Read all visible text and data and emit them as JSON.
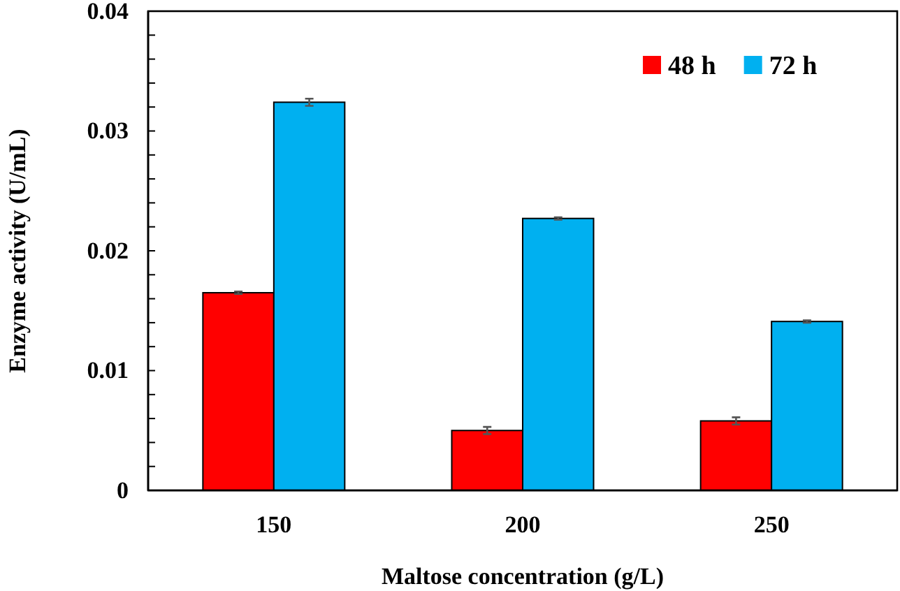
{
  "chart_data": {
    "type": "bar",
    "xlabel": "Maltose concentration (g/L)",
    "ylabel": "Enzyme activity (U/mL)",
    "categories": [
      "150",
      "200",
      "250"
    ],
    "series": [
      {
        "name": "48 h",
        "color": "#ff0000",
        "values": [
          0.0165,
          0.005,
          0.0058
        ],
        "errors": [
          0.0001,
          0.0003,
          0.0003
        ]
      },
      {
        "name": "72 h",
        "color": "#00b0f0",
        "values": [
          0.0324,
          0.0227,
          0.0141
        ],
        "errors": [
          0.0003,
          0.0001,
          0.0001
        ]
      }
    ],
    "ylim": [
      0,
      0.04
    ],
    "yticks": [
      0,
      {
        "value": 0.002,
        "label": null
      },
      {
        "value": 0.004,
        "label": null
      },
      {
        "value": 0.006,
        "label": null
      },
      {
        "value": 0.008,
        "label": null
      },
      0.01,
      {
        "value": 0.012,
        "label": null
      },
      {
        "value": 0.014,
        "label": null
      },
      {
        "value": 0.016,
        "label": null
      },
      {
        "value": 0.018,
        "label": null
      },
      0.02,
      {
        "value": 0.022,
        "label": null
      },
      {
        "value": 0.024,
        "label": null
      },
      {
        "value": 0.026,
        "label": null
      },
      {
        "value": 0.028,
        "label": null
      },
      0.03,
      {
        "value": 0.032,
        "label": null
      },
      {
        "value": 0.034,
        "label": null
      },
      {
        "value": 0.036,
        "label": null
      },
      {
        "value": 0.038,
        "label": null
      },
      0.04
    ],
    "legend": "top right",
    "grid": false
  }
}
